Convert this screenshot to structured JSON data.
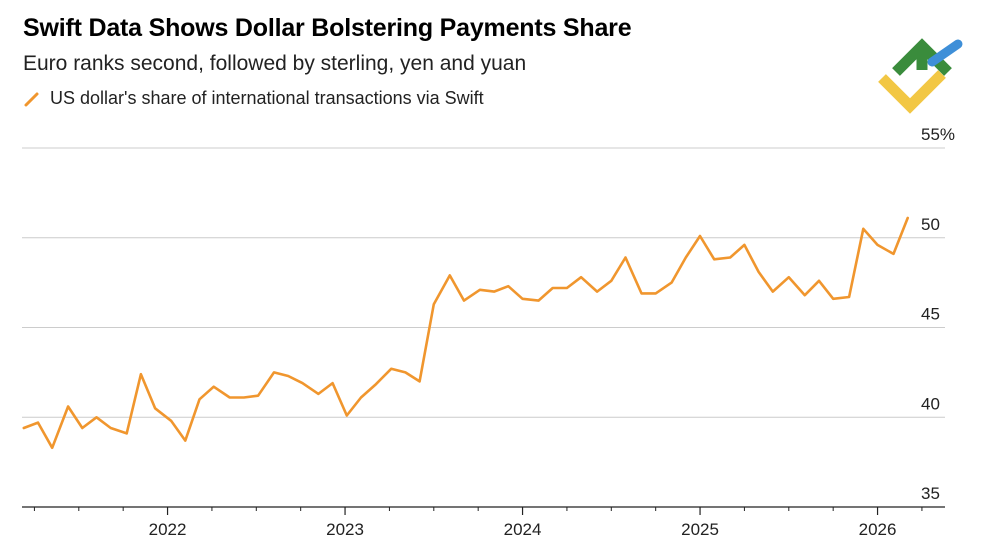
{
  "title": "Swift Data Shows Dollar Bolstering Payments Share",
  "subtitle": "Euro ranks second, followed by sterling, yen and yuan",
  "legend": {
    "label": "US dollar's share of international transactions via Swift"
  },
  "colors": {
    "series": "#f0962e",
    "grid": "#cccccc",
    "axis": "#222222",
    "logo_green": "#3a8c3c",
    "logo_blue": "#3e8fd8",
    "logo_yellow": "#f2c744"
  },
  "logo": {
    "icon": "brand-logo-icon"
  },
  "chart_data": {
    "type": "line",
    "title": "Swift Data Shows Dollar Bolstering Payments Share",
    "subtitle": "Euro ranks second, followed by sterling, yen and yuan",
    "xlabel": "",
    "ylabel": "",
    "ylim": [
      35,
      55
    ],
    "xlim": [
      2021.18,
      2026.38
    ],
    "y_ticks": [
      35,
      40,
      45,
      50,
      55
    ],
    "y_tick_labels": [
      "35",
      "40",
      "45",
      "50",
      "55%"
    ],
    "x_ticks": [
      2022,
      2023,
      2024,
      2025,
      2026
    ],
    "x_tick_labels": [
      "2022",
      "2023",
      "2024",
      "2025",
      "2026"
    ],
    "grid": true,
    "legend_position": "top-left",
    "series": [
      {
        "name": "US dollar's share of international transactions via Swift",
        "x": [
          2021.19,
          2021.27,
          2021.35,
          2021.44,
          2021.52,
          2021.6,
          2021.68,
          2021.77,
          2021.85,
          2021.93,
          2022.02,
          2022.1,
          2022.18,
          2022.26,
          2022.35,
          2022.43,
          2022.51,
          2022.6,
          2022.68,
          2022.76,
          2022.85,
          2022.93,
          2023.01,
          2023.09,
          2023.17,
          2023.26,
          2023.34,
          2023.42,
          2023.5,
          2023.59,
          2023.67,
          2023.76,
          2023.84,
          2023.92,
          2024.0,
          2024.09,
          2024.17,
          2024.25,
          2024.33,
          2024.42,
          2024.5,
          2024.58,
          2024.67,
          2024.75,
          2024.84,
          2024.92,
          2025.0,
          2025.08,
          2025.17,
          2025.25,
          2025.33,
          2025.41,
          2025.5,
          2025.59,
          2025.67,
          2025.75,
          2025.84,
          2025.92,
          2026.0,
          2026.09,
          2026.17
        ],
        "values": [
          39.4,
          39.7,
          38.3,
          40.6,
          39.4,
          40.0,
          39.4,
          39.1,
          42.4,
          40.5,
          39.8,
          38.7,
          41.0,
          41.7,
          41.1,
          41.1,
          41.2,
          42.5,
          42.3,
          41.9,
          41.3,
          41.9,
          40.1,
          41.1,
          41.8,
          42.7,
          42.5,
          42.0,
          46.3,
          47.9,
          46.5,
          47.1,
          47.0,
          47.3,
          46.6,
          46.5,
          47.2,
          47.2,
          47.8,
          47.0,
          47.6,
          48.9,
          46.9,
          46.9,
          47.5,
          48.9,
          50.1,
          48.8,
          48.9,
          49.6,
          48.1,
          47.0,
          47.8,
          46.8,
          47.6,
          46.6,
          46.7,
          50.5,
          49.6,
          49.1,
          51.1
        ]
      }
    ]
  }
}
